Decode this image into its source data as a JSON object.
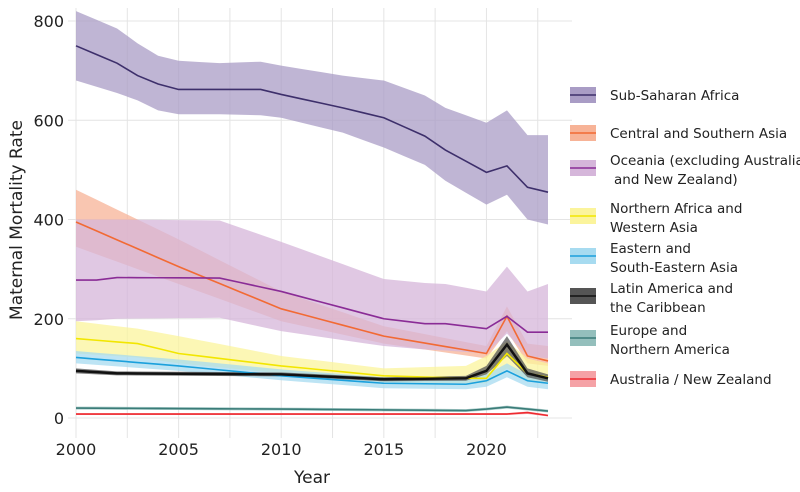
{
  "chart_data": {
    "type": "line",
    "xlabel": "Year",
    "ylabel": "Maternal Mortality Rate",
    "xlim": [
      2000,
      2023
    ],
    "ylim": [
      0,
      800
    ],
    "xticks": [
      2000,
      2005,
      2010,
      2015,
      2020
    ],
    "yticks": [
      0,
      200,
      400,
      600,
      800
    ],
    "grid": true,
    "legend_position": "right",
    "bands": "uncertainty interval shaded around each line",
    "series": [
      {
        "name": "Sub-Saharan Africa",
        "color": "#3d2f6b",
        "fill": "#a99cc5",
        "points": [
          [
            2000,
            750,
            680,
            820
          ],
          [
            2002,
            715,
            655,
            785
          ],
          [
            2003,
            690,
            640,
            755
          ],
          [
            2004,
            673,
            620,
            730
          ],
          [
            2005,
            662,
            612,
            720
          ],
          [
            2007,
            662,
            612,
            715
          ],
          [
            2009,
            662,
            610,
            718
          ],
          [
            2010,
            652,
            605,
            710
          ],
          [
            2013,
            625,
            575,
            690
          ],
          [
            2015,
            605,
            545,
            680
          ],
          [
            2017,
            568,
            510,
            650
          ],
          [
            2018,
            540,
            478,
            625
          ],
          [
            2020,
            495,
            430,
            595
          ],
          [
            2021,
            508,
            450,
            620
          ],
          [
            2022,
            465,
            400,
            570
          ],
          [
            2023,
            455,
            390,
            570
          ]
        ]
      },
      {
        "name": "Central and Southern Asia",
        "color": "#f26a34",
        "fill": "#f7b397",
        "points": [
          [
            2000,
            395,
            345,
            460
          ],
          [
            2005,
            305,
            270,
            360
          ],
          [
            2010,
            220,
            195,
            255
          ],
          [
            2015,
            165,
            150,
            185
          ],
          [
            2020,
            130,
            120,
            145
          ],
          [
            2021,
            205,
            175,
            225
          ],
          [
            2022,
            125,
            110,
            150
          ],
          [
            2023,
            115,
            105,
            145
          ]
        ]
      },
      {
        "name": "Oceania (excluding Australia and New Zealand)",
        "color": "#8a2c96",
        "fill": "#d5b6da",
        "points": [
          [
            2000,
            278,
            195,
            400
          ],
          [
            2001,
            278,
            197,
            400
          ],
          [
            2002,
            283,
            200,
            400
          ],
          [
            2007,
            282,
            202,
            398
          ],
          [
            2010,
            255,
            175,
            355
          ],
          [
            2015,
            200,
            145,
            280
          ],
          [
            2017,
            190,
            138,
            272
          ],
          [
            2018,
            190,
            136,
            270
          ],
          [
            2020,
            180,
            130,
            255
          ],
          [
            2021,
            205,
            170,
            305
          ],
          [
            2022,
            173,
            125,
            255
          ],
          [
            2023,
            173,
            120,
            270
          ]
        ]
      },
      {
        "name": "Northern Africa and Western Asia",
        "color": "#f2e600",
        "fill": "#fbf49c",
        "points": [
          [
            2000,
            160,
            130,
            195
          ],
          [
            2003,
            150,
            122,
            180
          ],
          [
            2005,
            130,
            110,
            165
          ],
          [
            2010,
            105,
            90,
            125
          ],
          [
            2015,
            85,
            72,
            100
          ],
          [
            2019,
            80,
            70,
            105
          ],
          [
            2020,
            80,
            70,
            125
          ],
          [
            2021,
            130,
            100,
            155
          ],
          [
            2022,
            90,
            75,
            120
          ],
          [
            2023,
            82,
            70,
            110
          ]
        ]
      },
      {
        "name": "Eastern and South-Eastern Asia",
        "color": "#1ba0dc",
        "fill": "#a7dbf0",
        "points": [
          [
            2000,
            122,
            110,
            135
          ],
          [
            2005,
            105,
            95,
            118
          ],
          [
            2010,
            85,
            76,
            98
          ],
          [
            2015,
            70,
            60,
            82
          ],
          [
            2019,
            68,
            58,
            80
          ],
          [
            2020,
            75,
            63,
            88
          ],
          [
            2021,
            95,
            82,
            110
          ],
          [
            2022,
            75,
            63,
            88
          ],
          [
            2023,
            70,
            58,
            82
          ]
        ]
      },
      {
        "name": "Latin America and the Caribbean",
        "color": "#111111",
        "fill": "#555555",
        "points": [
          [
            2000,
            95,
            90,
            100
          ],
          [
            2002,
            90,
            86,
            94
          ],
          [
            2010,
            88,
            84,
            92
          ],
          [
            2015,
            78,
            74,
            82
          ],
          [
            2019,
            80,
            75,
            85
          ],
          [
            2020,
            95,
            88,
            105
          ],
          [
            2021,
            148,
            125,
            165
          ],
          [
            2022,
            90,
            82,
            100
          ],
          [
            2023,
            80,
            73,
            88
          ]
        ]
      },
      {
        "name": "Europe and Northern America",
        "color": "#3a7c78",
        "fill": "#94bfbc",
        "points": [
          [
            2000,
            20,
            17,
            23
          ],
          [
            2010,
            18,
            15,
            21
          ],
          [
            2019,
            15,
            12,
            18
          ],
          [
            2020,
            18,
            15,
            21
          ],
          [
            2021,
            22,
            19,
            25
          ],
          [
            2022,
            18,
            15,
            21
          ],
          [
            2023,
            14,
            11,
            17
          ]
        ]
      },
      {
        "name": "Australia / New Zealand",
        "color": "#ee2a30",
        "fill": "#f5a2a6",
        "points": [
          [
            2000,
            8,
            6,
            10
          ],
          [
            2010,
            8,
            6,
            10
          ],
          [
            2020,
            8,
            6,
            10
          ],
          [
            2021,
            8,
            6,
            10
          ],
          [
            2022,
            11,
            8,
            13
          ],
          [
            2023,
            5,
            3,
            7
          ]
        ]
      }
    ]
  }
}
